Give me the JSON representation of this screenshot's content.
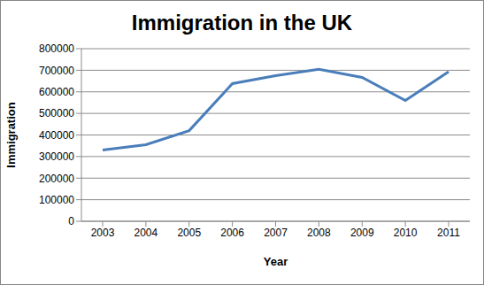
{
  "chart_data": {
    "type": "line",
    "title": "Immigration in the UK",
    "x_label": "Year",
    "y_label": "Immigration",
    "categories": [
      "2003",
      "2004",
      "2005",
      "2006",
      "2007",
      "2008",
      "2009",
      "2010",
      "2011"
    ],
    "values": [
      330000,
      355000,
      420000,
      638000,
      675000,
      705000,
      667000,
      560000,
      693000
    ],
    "color": "#4a7ebb",
    "ylim": [
      0,
      800000
    ],
    "yticks": [
      0,
      100000,
      200000,
      300000,
      400000,
      500000,
      600000,
      700000,
      800000
    ],
    "grid": true,
    "marker": "none"
  }
}
